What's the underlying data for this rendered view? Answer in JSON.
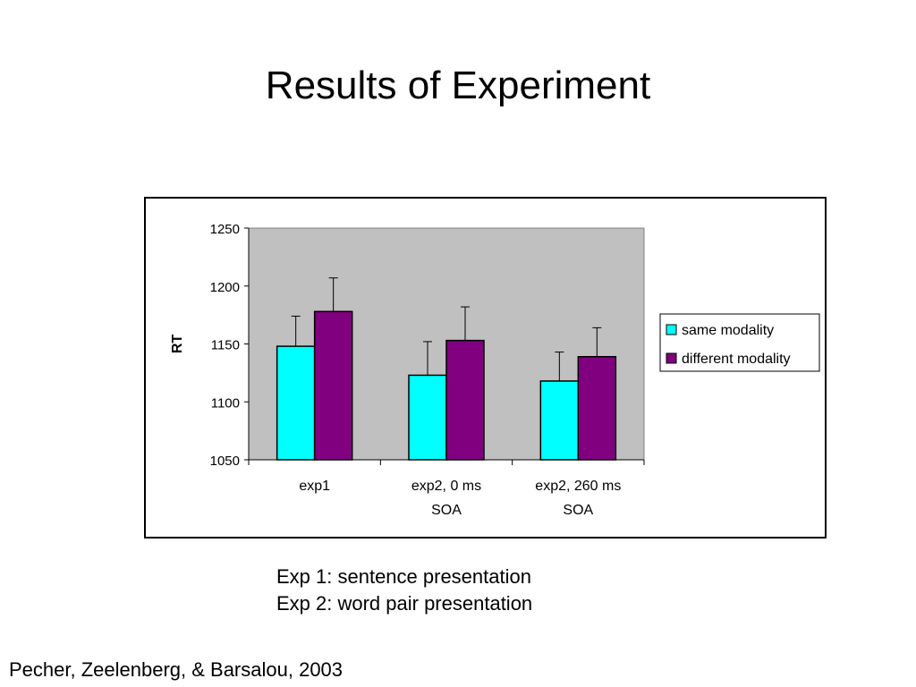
{
  "slide": {
    "title": "Results of Experiment",
    "notes": [
      "Exp 1: sentence presentation",
      "Exp 2: word pair presentation"
    ],
    "citation": "Pecher, Zeelenberg, & Barsalou, 2003"
  },
  "chart_data": {
    "type": "bar",
    "title": "",
    "xlabel": "",
    "ylabel": "RT",
    "ylim": [
      1050,
      1250
    ],
    "yticks": [
      1050,
      1100,
      1150,
      1200,
      1250
    ],
    "categories": [
      [
        "exp1"
      ],
      [
        "exp2, 0 ms",
        "SOA"
      ],
      [
        "exp2, 260 ms",
        "SOA"
      ]
    ],
    "series": [
      {
        "name": "same modality",
        "color": "#00ffff",
        "values": [
          1148,
          1123,
          1118
        ],
        "error": [
          26,
          29,
          25
        ]
      },
      {
        "name": "different modality",
        "color": "#800080",
        "values": [
          1178,
          1153,
          1139
        ],
        "error": [
          29,
          29,
          25
        ]
      }
    ],
    "plot_background": "#c0c0c0",
    "grid": false,
    "legend_position": "right"
  }
}
